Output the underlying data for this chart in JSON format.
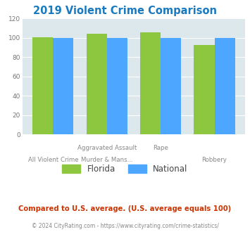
{
  "title": "2019 Violent Crime Comparison",
  "title_color": "#1a7abf",
  "florida_color": "#8dc63f",
  "national_color": "#4da6ff",
  "ylim": [
    0,
    120
  ],
  "yticks": [
    0,
    20,
    40,
    60,
    80,
    100,
    120
  ],
  "plot_bg": "#dce8ec",
  "legend_florida": "Florida",
  "legend_national": "National",
  "footnote1": "Compared to U.S. average. (U.S. average equals 100)",
  "footnote2": "© 2024 CityRating.com - https://www.cityrating.com/crime-statistics/",
  "footnote1_color": "#cc3300",
  "footnote2_color": "#888888",
  "bar_groups": [
    {
      "label_line1": "All Violent Crime",
      "label_line2": "",
      "florida": 101,
      "national": 100
    },
    {
      "label_line1": "Aggravated Assault",
      "label_line2": "Murder & Mans...",
      "florida": 104,
      "national": 100
    },
    {
      "label_line1": "Rape",
      "label_line2": "",
      "florida": 106,
      "national": 100
    },
    {
      "label_line1": "Robbery",
      "label_line2": "",
      "florida": 93,
      "national": 100
    }
  ]
}
